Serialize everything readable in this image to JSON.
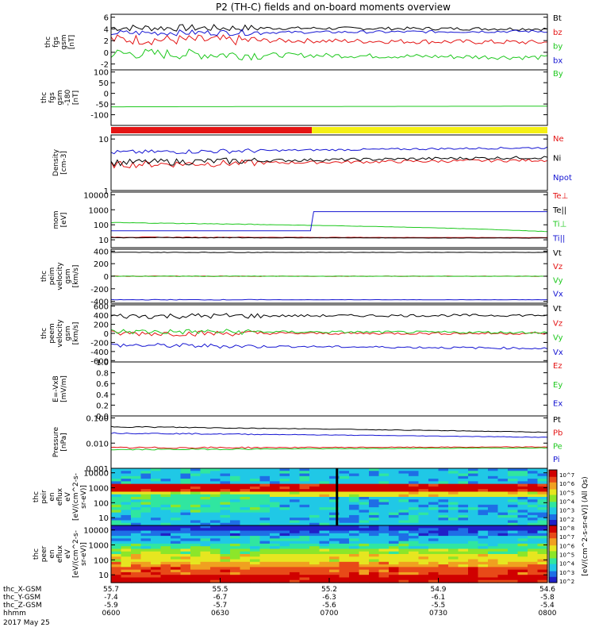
{
  "title": "P2 (TH-C) fields and on-board moments overview",
  "colors": {
    "black": "#000000",
    "red": "#e41414",
    "green": "#1ec81e",
    "blue": "#1414d2",
    "yellow": "#f5f014"
  },
  "chart_data": [
    {
      "type": "line",
      "ylabel": [
        "thc",
        "fgs",
        "gsm",
        "[nT]"
      ],
      "yticks": [
        "6",
        "4",
        "2",
        "0",
        "-2"
      ],
      "ylim": [
        -3,
        6.5
      ],
      "series": [
        {
          "name": "Bt",
          "color": "black",
          "start": 4.2,
          "end": 4.0,
          "noise": 0.6
        },
        {
          "name": "bz",
          "color": "red",
          "start": 2.2,
          "end": 1.7,
          "noise": 0.9
        },
        {
          "name": "by",
          "color": "green",
          "start": -0.2,
          "end": -0.9,
          "noise": 0.9
        },
        {
          "name": "bx",
          "color": "blue",
          "start": 3.3,
          "end": 3.6,
          "noise": 0.5
        }
      ]
    },
    {
      "type": "line",
      "ylabel": [
        "thc",
        "fgs",
        "gsm",
        "-180",
        "[nT]"
      ],
      "yticks": [
        "100",
        "50",
        "0",
        "-50",
        "-100"
      ],
      "ylim": [
        -150,
        110
      ],
      "series": [
        {
          "name": "By",
          "color": "green",
          "start": -63,
          "end": -60,
          "noise": 0
        }
      ]
    },
    {
      "type": "bar-strip",
      "segments": [
        {
          "color": "red",
          "from": 0,
          "to": 0.46
        },
        {
          "color": "yellow",
          "from": 0.46,
          "to": 1
        }
      ]
    },
    {
      "type": "line",
      "ylabel": [
        "Density",
        "[cm-3]"
      ],
      "yticks": [
        "10",
        "1"
      ],
      "ylim": [
        1,
        12
      ],
      "log": true,
      "series": [
        {
          "name": "Ne",
          "color": "red",
          "start": 3.2,
          "end": 3.9,
          "noise": 0.3
        },
        {
          "name": "Ni",
          "color": "black",
          "start": 3.5,
          "end": 4.4,
          "noise": 0.3
        },
        {
          "name": "Npot",
          "color": "blue",
          "start": 5.5,
          "end": 6.8,
          "noise": 0.2
        }
      ]
    },
    {
      "type": "line",
      "ylabel": [
        "mom",
        "[eV]"
      ],
      "yticks": [
        "10000",
        "1000",
        "100",
        "10"
      ],
      "ylim": [
        3,
        15000
      ],
      "log": true,
      "series": [
        {
          "name": "Te⊥",
          "color": "red",
          "start": 15,
          "end": 14,
          "noise": 0.1
        },
        {
          "name": "Te||",
          "color": "black",
          "start": 14,
          "end": 13,
          "noise": 0.1
        },
        {
          "name": "Ti⊥",
          "color": "green",
          "start": 140,
          "end": 35,
          "noise": 0.1
        },
        {
          "name": "Ti||",
          "color": "blue",
          "start": 50,
          "end": 750,
          "noise": 0
        }
      ]
    },
    {
      "type": "line",
      "ylabel": [
        "thc",
        "peim",
        "velocity",
        "gsm",
        "[km/s]"
      ],
      "yticks": [
        "400",
        "200",
        "0",
        "-200",
        "-400"
      ],
      "ylim": [
        -430,
        430
      ],
      "series": [
        {
          "name": "Vt",
          "color": "black",
          "start": 380,
          "end": 380,
          "noise": 5
        },
        {
          "name": "Vz",
          "color": "red",
          "start": 0,
          "end": 0,
          "noise": 5
        },
        {
          "name": "Vy",
          "color": "green",
          "start": 0,
          "end": 0,
          "noise": 5
        },
        {
          "name": "Vx",
          "color": "blue",
          "start": -375,
          "end": -375,
          "noise": 5
        }
      ]
    },
    {
      "type": "line",
      "ylabel": [
        "thc",
        "peem",
        "velocity",
        "gsm",
        "[km/s]"
      ],
      "yticks": [
        "600",
        "400",
        "200",
        "0",
        "-200",
        "-400",
        "-600"
      ],
      "ylim": [
        -630,
        630
      ],
      "series": [
        {
          "name": "Vt",
          "color": "black",
          "start": 380,
          "end": 400,
          "noise": 60
        },
        {
          "name": "Vz",
          "color": "red",
          "start": 0,
          "end": 0,
          "noise": 60
        },
        {
          "name": "Vy",
          "color": "green",
          "start": 40,
          "end": 20,
          "noise": 60
        },
        {
          "name": "Vx",
          "color": "blue",
          "start": -260,
          "end": -330,
          "noise": 50
        }
      ]
    },
    {
      "type": "line",
      "ylabel": [
        "E=-VxB",
        "[mV/m]"
      ],
      "yticks": [
        "1.0",
        "0.8",
        "0.6",
        "0.4",
        "0.2",
        "0.0"
      ],
      "ylim": [
        0,
        1
      ],
      "series": [
        {
          "name": "Ez",
          "color": "red",
          "start": 0,
          "end": 0,
          "noise": 0
        },
        {
          "name": "Ey",
          "color": "green",
          "start": 0,
          "end": 0,
          "noise": 0
        },
        {
          "name": "Ex",
          "color": "blue",
          "start": 0,
          "end": 0,
          "noise": 0
        }
      ]
    },
    {
      "type": "line",
      "ylabel": [
        "Pressure",
        "[nPa]"
      ],
      "yticks": [
        "0.100",
        "0.010",
        "0.001"
      ],
      "ylim": [
        0.001,
        0.12
      ],
      "log": true,
      "series": [
        {
          "name": "Pt",
          "color": "black",
          "start": 0.045,
          "end": 0.027,
          "noise": 0.1
        },
        {
          "name": "Pb",
          "color": "red",
          "start": 0.0065,
          "end": 0.007,
          "noise": 0.15
        },
        {
          "name": "Pe",
          "color": "green",
          "start": 0.0055,
          "end": 0.0065,
          "noise": 0.1
        },
        {
          "name": "Pi",
          "color": "blue",
          "start": 0.025,
          "end": 0.017,
          "noise": 0.1
        }
      ]
    },
    {
      "type": "heatmap",
      "ylabel": [
        "thc",
        "peir",
        "en",
        "eflux",
        "eV",
        "[eV/(cm^2-s-",
        "sr-eV)]"
      ],
      "yticks": [
        "10000",
        "1000",
        "100",
        "10"
      ],
      "ylim": [
        3,
        20000
      ],
      "log": true
    },
    {
      "type": "heatmap",
      "ylabel": [
        "thc",
        "peer",
        "en",
        "eflux",
        "eV",
        "[eV/(cm^2-s-",
        "sr-eV)]"
      ],
      "yticks": [
        "10000",
        "1000",
        "100",
        "10"
      ],
      "ylim": [
        3,
        20000
      ],
      "log": true
    }
  ],
  "colorbar": {
    "label": "[eV/(cm^2-s-sr-eV)] (All Qs)",
    "ticks": [
      "10^7",
      "10^6",
      "10^5",
      "10^4",
      "10^3",
      "10^2",
      "10^8",
      "10^7",
      "10^6",
      "10^5",
      "10^4",
      "10^3",
      "10^2"
    ]
  },
  "xaxis": {
    "rows": [
      {
        "name": "thc_X-GSM",
        "values": [
          "55.7",
          "55.5",
          "55.2",
          "54.9",
          "54.6"
        ]
      },
      {
        "name": "thc_Y-GSM",
        "values": [
          "-7.4",
          "-6.7",
          "-6.3",
          "-6.1",
          "-5.8"
        ]
      },
      {
        "name": "thc_Z-GSM",
        "values": [
          "-5.9",
          "-5.7",
          "-5.6",
          "-5.5",
          "-5.4"
        ]
      },
      {
        "name": "hhmm",
        "values": [
          "0600",
          "0630",
          "0700",
          "0730",
          "0800"
        ]
      }
    ],
    "date": "2017 May 25"
  }
}
